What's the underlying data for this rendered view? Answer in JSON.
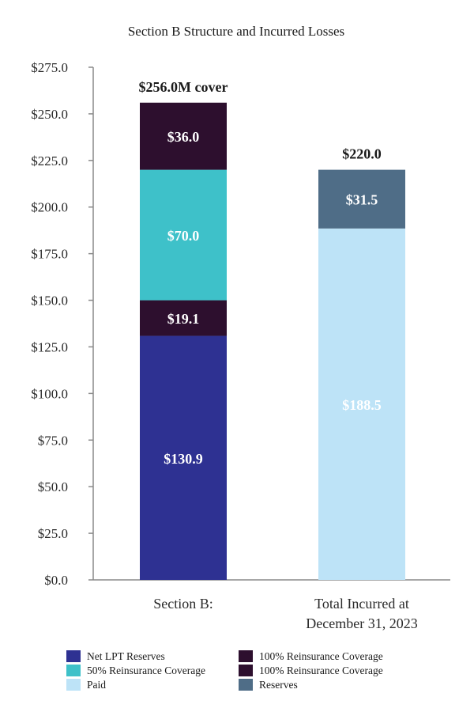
{
  "chart_data": {
    "type": "bar",
    "stacked": true,
    "title": "Section B Structure and Incurred Losses",
    "ylim": [
      0,
      275
    ],
    "yticks": [
      "$0.0",
      "$25.0",
      "$50.0",
      "$75.0",
      "$100.0",
      "$125.0",
      "$150.0",
      "$175.0",
      "$200.0",
      "$225.0",
      "$250.0",
      "$275.0"
    ],
    "ytick_values": [
      0,
      25,
      50,
      75,
      100,
      125,
      150,
      175,
      200,
      225,
      250,
      275
    ],
    "grid": false,
    "legend_position": "bottom",
    "categories": [
      {
        "lines": [
          "Section B:"
        ]
      },
      {
        "lines": [
          "Total Incurred at",
          "December 31, 2023"
        ]
      }
    ],
    "bars": [
      {
        "total_label": "$256.0M cover",
        "segments": [
          {
            "series": "Net LPT Reserves",
            "value": 130.9,
            "label": "$130.9",
            "color": "#2e3192"
          },
          {
            "series": "100% Reinsurance Coverage",
            "value": 19.1,
            "label": "$19.1",
            "color": "#2d0f2e"
          },
          {
            "series": "50% Reinsurance Coverage",
            "value": 70.0,
            "label": "$70.0",
            "color": "#3ec1c9"
          },
          {
            "series": "100% Reinsurance Coverage",
            "value": 36.0,
            "label": "$36.0",
            "color": "#2d0f2e"
          }
        ]
      },
      {
        "total_label": "$220.0",
        "segments": [
          {
            "series": "Paid",
            "value": 188.5,
            "label": "$188.5",
            "color": "#bde3f7"
          },
          {
            "series": "Reserves",
            "value": 31.5,
            "label": "$31.5",
            "color": "#4f6d87"
          }
        ]
      }
    ],
    "legend": [
      {
        "label": "Net LPT Reserves",
        "color": "#2e3192"
      },
      {
        "label": "100% Reinsurance Coverage",
        "color": "#2d0f2e"
      },
      {
        "label": "50% Reinsurance Coverage",
        "color": "#3ec1c9"
      },
      {
        "label": "100% Reinsurance Coverage",
        "color": "#2d0f2e"
      },
      {
        "label": "Paid",
        "color": "#bde3f7"
      },
      {
        "label": "Reserves",
        "color": "#4f6d87"
      }
    ]
  }
}
